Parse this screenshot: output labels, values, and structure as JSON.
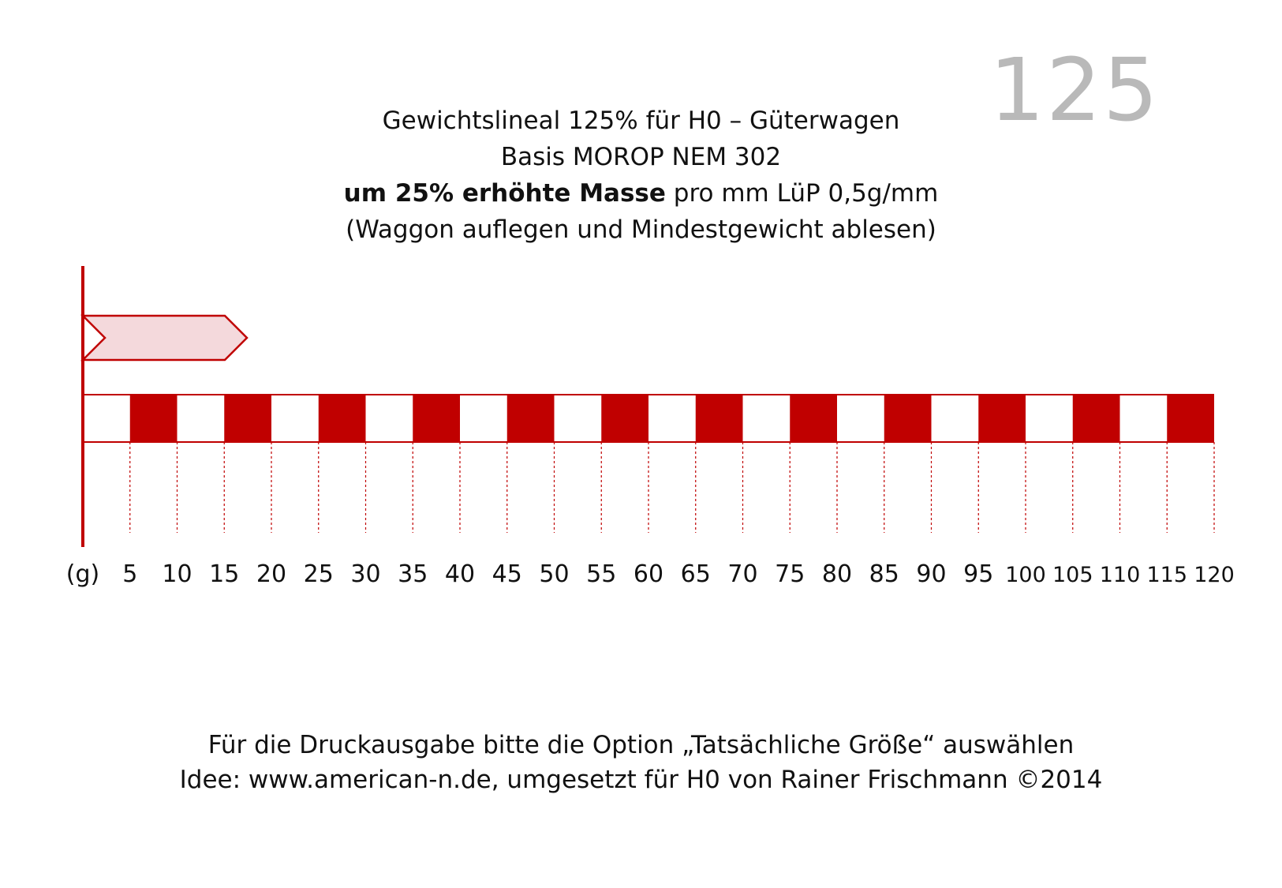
{
  "scale_label": "125",
  "header": {
    "title": "Gewichtslineal 125% für H0 – Güterwagen",
    "basis": "Basis MOROP NEM 302",
    "mass_bold": "um 25% erhöhte Masse",
    "mass_rest": " pro mm LüP 0,5g/mm",
    "instruction": "(Waggon auflegen und Mindestgewicht ablesen)"
  },
  "ruler": {
    "unit_label": "(g)",
    "ticks": [
      "5",
      "10",
      "15",
      "20",
      "25",
      "30",
      "35",
      "40",
      "45",
      "50",
      "55",
      "60",
      "65",
      "70",
      "75",
      "80",
      "85",
      "90",
      "95",
      "100",
      "105",
      "110",
      "115",
      "120"
    ],
    "accent_color": "#c00000",
    "pointer_fill": "#f4d9dc"
  },
  "footer": {
    "print_note": "Für die Druckausgabe bitte die Option „Tatsächliche Größe“ auswählen",
    "credit": "Idee: www.american-n.de, umgesetzt für H0 von Rainer Frischmann ©2014"
  }
}
